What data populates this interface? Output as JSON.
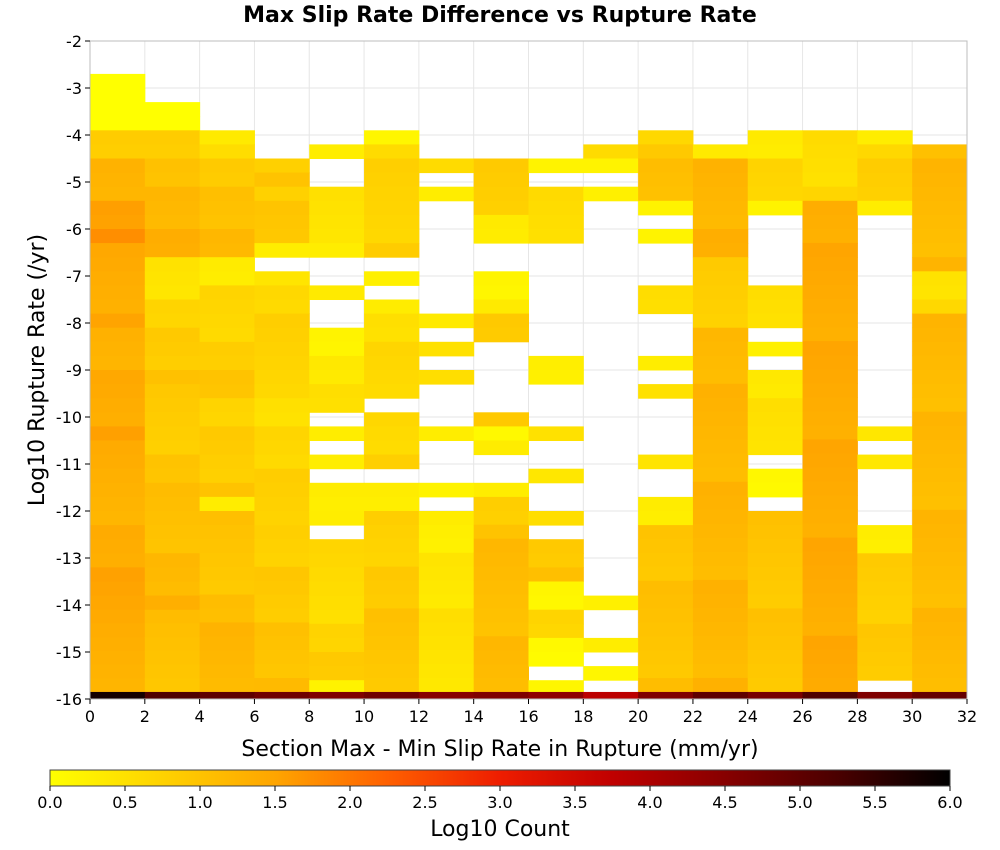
{
  "chart_data": {
    "type": "heatmap",
    "title": "Max Slip Rate Difference vs Rupture Rate",
    "xlabel": "Section Max - Min Slip Rate in Rupture (mm/yr)",
    "ylabel": "Log10 Rupture Rate (/yr)",
    "xlim": [
      0,
      32
    ],
    "ylim": [
      -16,
      -2
    ],
    "x_ticks": [
      "0",
      "2",
      "4",
      "6",
      "8",
      "10",
      "12",
      "14",
      "16",
      "18",
      "20",
      "22",
      "24",
      "26",
      "28",
      "30",
      "32"
    ],
    "y_ticks": [
      "-2",
      "-3",
      "-4",
      "-5",
      "-6",
      "-7",
      "-8",
      "-9",
      "-10",
      "-11",
      "-12",
      "-13",
      "-14",
      "-15",
      "-16"
    ],
    "x_bin_width": 2,
    "y_bin_height": 0.3,
    "grid": true,
    "colorbar": {
      "label": "Log10 Count",
      "min": 0.0,
      "max": 6.0,
      "ticks": [
        "0.0",
        "0.5",
        "1.0",
        "1.5",
        "2.0",
        "2.5",
        "3.0",
        "3.5",
        "4.0",
        "4.5",
        "5.0",
        "5.5",
        "6.0"
      ],
      "stops": [
        "#ffff00",
        "#ffd200",
        "#ffa500",
        "#ff6000",
        "#ee1d00",
        "#c00000",
        "#870000",
        "#4a0000",
        "#000000"
      ]
    },
    "columns": [
      {
        "x_start": 0,
        "bins": [
          {
            "y_top": -2.7,
            "y_bottom": -3.3,
            "value": 0.1
          },
          {
            "y_top": -3.3,
            "y_bottom": -3.9,
            "value": 0.15
          },
          {
            "y_top": -3.9,
            "y_bottom": -4.5,
            "value": 1.1
          },
          {
            "y_top": -4.5,
            "y_bottom": -5.4,
            "value": 1.5
          },
          {
            "y_top": -5.4,
            "y_bottom": -6.3,
            "value": 1.85
          },
          {
            "y_top": -6.3,
            "y_bottom": -8.1,
            "value": 1.55
          },
          {
            "y_top": -8.1,
            "y_bottom": -10.5,
            "value": 1.55
          },
          {
            "y_top": -10.5,
            "y_bottom": -12.3,
            "value": 1.5
          },
          {
            "y_top": -12.3,
            "y_bottom": -14.1,
            "value": 1.65
          },
          {
            "y_top": -14.1,
            "y_bottom": -15.85,
            "value": 1.55
          }
        ]
      },
      {
        "x_start": 2,
        "bins": [
          {
            "y_top": -3.3,
            "y_bottom": -3.9,
            "value": 0.2
          },
          {
            "y_top": -3.9,
            "y_bottom": -5.1,
            "value": 1.1
          },
          {
            "y_top": -5.1,
            "y_bottom": -6.6,
            "value": 1.4
          },
          {
            "y_top": -6.6,
            "y_bottom": -7.5,
            "value": 0.7
          },
          {
            "y_top": -7.5,
            "y_bottom": -9.3,
            "value": 1.0
          },
          {
            "y_top": -9.3,
            "y_bottom": -11.4,
            "value": 1.1
          },
          {
            "y_top": -11.4,
            "y_bottom": -14.1,
            "value": 1.3
          },
          {
            "y_top": -14.1,
            "y_bottom": -15.85,
            "value": 1.25
          }
        ]
      },
      {
        "x_start": 4,
        "bins": [
          {
            "y_top": -3.9,
            "y_bottom": -4.5,
            "value": 0.6
          },
          {
            "y_top": -4.5,
            "y_bottom": -6.6,
            "value": 1.1
          },
          {
            "y_top": -6.6,
            "y_bottom": -7.2,
            "value": 0.55
          },
          {
            "y_top": -7.2,
            "y_bottom": -9.6,
            "value": 0.9
          },
          {
            "y_top": -9.6,
            "y_bottom": -11.7,
            "value": 1.0
          },
          {
            "y_top": -11.7,
            "y_bottom": -12.0,
            "value": 0.3
          },
          {
            "y_top": -12.0,
            "y_bottom": -15.85,
            "value": 1.2
          }
        ]
      },
      {
        "x_start": 6,
        "bins": [
          {
            "y_top": -4.5,
            "y_bottom": -5.1,
            "value": 1.0
          },
          {
            "y_top": -5.1,
            "y_bottom": -6.3,
            "value": 0.95
          },
          {
            "y_top": -6.3,
            "y_bottom": -6.6,
            "value": 0.3
          },
          {
            "y_top": -6.9,
            "y_bottom": -9.6,
            "value": 0.75
          },
          {
            "y_top": -9.6,
            "y_bottom": -12.3,
            "value": 0.8
          },
          {
            "y_top": -12.3,
            "y_bottom": -15.85,
            "value": 1.05
          }
        ]
      },
      {
        "x_start": 8,
        "bins": [
          {
            "y_top": -4.2,
            "y_bottom": -4.5,
            "value": 0.3
          },
          {
            "y_top": -5.1,
            "y_bottom": -6.3,
            "value": 0.45
          },
          {
            "y_top": -6.3,
            "y_bottom": -6.6,
            "value": 0.3
          },
          {
            "y_top": -7.2,
            "y_bottom": -7.5,
            "value": 0.35
          },
          {
            "y_top": -8.1,
            "y_bottom": -9.9,
            "value": 0.45
          },
          {
            "y_top": -10.2,
            "y_bottom": -10.5,
            "value": 0.3
          },
          {
            "y_top": -10.8,
            "y_bottom": -11.1,
            "value": 0.3
          },
          {
            "y_top": -11.4,
            "y_bottom": -12.0,
            "value": 0.5
          },
          {
            "y_top": -12.0,
            "y_bottom": -12.3,
            "value": 0.3
          },
          {
            "y_top": -12.6,
            "y_bottom": -15.6,
            "value": 0.8
          },
          {
            "y_top": -15.6,
            "y_bottom": -15.85,
            "value": 0.2
          }
        ]
      },
      {
        "x_start": 10,
        "bins": [
          {
            "y_top": -3.9,
            "y_bottom": -4.2,
            "value": 0.15
          },
          {
            "y_top": -4.2,
            "y_bottom": -5.4,
            "value": 0.7
          },
          {
            "y_top": -5.4,
            "y_bottom": -6.6,
            "value": 0.75
          },
          {
            "y_top": -6.9,
            "y_bottom": -7.2,
            "value": 0.25
          },
          {
            "y_top": -7.5,
            "y_bottom": -9.6,
            "value": 0.6
          },
          {
            "y_top": -9.9,
            "y_bottom": -11.1,
            "value": 0.8
          },
          {
            "y_top": -11.4,
            "y_bottom": -12.0,
            "value": 0.5
          },
          {
            "y_top": -12.0,
            "y_bottom": -15.85,
            "value": 0.95
          }
        ]
      },
      {
        "x_start": 12,
        "bins": [
          {
            "y_top": -4.5,
            "y_bottom": -4.8,
            "value": 0.6
          },
          {
            "y_top": -5.1,
            "y_bottom": -5.4,
            "value": 0.3
          },
          {
            "y_top": -7.8,
            "y_bottom": -8.1,
            "value": 0.35
          },
          {
            "y_top": -8.4,
            "y_bottom": -8.7,
            "value": 0.5
          },
          {
            "y_top": -9.0,
            "y_bottom": -9.3,
            "value": 0.55
          },
          {
            "y_top": -10.2,
            "y_bottom": -10.5,
            "value": 0.3
          },
          {
            "y_top": -11.4,
            "y_bottom": -11.7,
            "value": 0.2
          },
          {
            "y_top": -12.0,
            "y_bottom": -15.85,
            "value": 0.45
          }
        ]
      },
      {
        "x_start": 14,
        "bins": [
          {
            "y_top": -4.5,
            "y_bottom": -5.7,
            "value": 0.85
          },
          {
            "y_top": -5.7,
            "y_bottom": -6.3,
            "value": 0.25
          },
          {
            "y_top": -6.9,
            "y_bottom": -7.8,
            "value": 0.25
          },
          {
            "y_top": -7.8,
            "y_bottom": -8.4,
            "value": 0.8
          },
          {
            "y_top": -9.9,
            "y_bottom": -10.2,
            "value": 0.9
          },
          {
            "y_top": -10.2,
            "y_bottom": -10.8,
            "value": 0.35
          },
          {
            "y_top": -11.4,
            "y_bottom": -11.7,
            "value": 0.3
          },
          {
            "y_top": -11.7,
            "y_bottom": -15.85,
            "value": 1.1
          }
        ]
      },
      {
        "x_start": 16,
        "bins": [
          {
            "y_top": -4.5,
            "y_bottom": -4.8,
            "value": 0.2
          },
          {
            "y_top": -5.1,
            "y_bottom": -6.3,
            "value": 0.55
          },
          {
            "y_top": -8.7,
            "y_bottom": -9.3,
            "value": 0.25
          },
          {
            "y_top": -10.2,
            "y_bottom": -10.5,
            "value": 0.5
          },
          {
            "y_top": -11.1,
            "y_bottom": -11.4,
            "value": 0.4
          },
          {
            "y_top": -12.0,
            "y_bottom": -12.3,
            "value": 0.55
          },
          {
            "y_top": -12.6,
            "y_bottom": -13.5,
            "value": 1.0
          },
          {
            "y_top": -13.5,
            "y_bottom": -14.1,
            "value": 0.35
          },
          {
            "y_top": -14.1,
            "y_bottom": -14.7,
            "value": 0.85
          },
          {
            "y_top": -14.7,
            "y_bottom": -15.3,
            "value": 0.2
          },
          {
            "y_top": -15.6,
            "y_bottom": -15.85,
            "value": 0.15
          }
        ]
      },
      {
        "x_start": 18,
        "bins": [
          {
            "y_top": -4.2,
            "y_bottom": -4.5,
            "value": 0.6
          },
          {
            "y_top": -4.5,
            "y_bottom": -4.8,
            "value": 0.2
          },
          {
            "y_top": -5.1,
            "y_bottom": -5.4,
            "value": 0.25
          },
          {
            "y_top": -13.8,
            "y_bottom": -14.1,
            "value": 0.25
          },
          {
            "y_top": -14.7,
            "y_bottom": -15.0,
            "value": 0.3
          },
          {
            "y_top": -15.3,
            "y_bottom": -15.6,
            "value": 0.15
          }
        ]
      },
      {
        "x_start": 20,
        "bins": [
          {
            "y_top": -3.9,
            "y_bottom": -4.2,
            "value": 0.65
          },
          {
            "y_top": -4.2,
            "y_bottom": -5.4,
            "value": 1.0
          },
          {
            "y_top": -5.4,
            "y_bottom": -5.7,
            "value": 0.2
          },
          {
            "y_top": -6.0,
            "y_bottom": -6.3,
            "value": 0.2
          },
          {
            "y_top": -7.2,
            "y_bottom": -7.8,
            "value": 0.5
          },
          {
            "y_top": -8.7,
            "y_bottom": -9.0,
            "value": 0.3
          },
          {
            "y_top": -9.3,
            "y_bottom": -9.6,
            "value": 0.5
          },
          {
            "y_top": -10.8,
            "y_bottom": -11.1,
            "value": 0.45
          },
          {
            "y_top": -11.7,
            "y_bottom": -12.3,
            "value": 0.35
          },
          {
            "y_top": -12.3,
            "y_bottom": -15.85,
            "value": 1.0
          }
        ]
      },
      {
        "x_start": 22,
        "bins": [
          {
            "y_top": -4.2,
            "y_bottom": -4.5,
            "value": 0.35
          },
          {
            "y_top": -4.5,
            "y_bottom": -6.6,
            "value": 1.25
          },
          {
            "y_top": -6.6,
            "y_bottom": -8.1,
            "value": 0.85
          },
          {
            "y_top": -8.1,
            "y_bottom": -15.85,
            "value": 1.2
          }
        ]
      },
      {
        "x_start": 24,
        "bins": [
          {
            "y_top": -3.9,
            "y_bottom": -4.5,
            "value": 0.35
          },
          {
            "y_top": -4.5,
            "y_bottom": -5.4,
            "value": 0.7
          },
          {
            "y_top": -5.4,
            "y_bottom": -5.7,
            "value": 0.2
          },
          {
            "y_top": -7.2,
            "y_bottom": -8.1,
            "value": 0.5
          },
          {
            "y_top": -8.4,
            "y_bottom": -8.7,
            "value": 0.25
          },
          {
            "y_top": -9.0,
            "y_bottom": -10.8,
            "value": 0.45
          },
          {
            "y_top": -11.1,
            "y_bottom": -11.7,
            "value": 0.2
          },
          {
            "y_top": -12.0,
            "y_bottom": -15.85,
            "value": 0.95
          }
        ]
      },
      {
        "x_start": 26,
        "bins": [
          {
            "y_top": -3.9,
            "y_bottom": -5.4,
            "value": 0.6
          },
          {
            "y_top": -5.4,
            "y_bottom": -15.85,
            "value": 1.4
          }
        ]
      },
      {
        "x_start": 28,
        "bins": [
          {
            "y_top": -3.9,
            "y_bottom": -4.2,
            "value": 0.3
          },
          {
            "y_top": -4.2,
            "y_bottom": -5.4,
            "value": 0.75
          },
          {
            "y_top": -5.4,
            "y_bottom": -5.7,
            "value": 0.3
          },
          {
            "y_top": -10.2,
            "y_bottom": -10.5,
            "value": 0.4
          },
          {
            "y_top": -10.8,
            "y_bottom": -11.1,
            "value": 0.4
          },
          {
            "y_top": -12.3,
            "y_bottom": -12.9,
            "value": 0.3
          },
          {
            "y_top": -12.9,
            "y_bottom": -15.6,
            "value": 0.85
          }
        ]
      },
      {
        "x_start": 30,
        "bins": [
          {
            "y_top": -4.2,
            "y_bottom": -6.9,
            "value": 1.15
          },
          {
            "y_top": -6.9,
            "y_bottom": -7.8,
            "value": 0.55
          },
          {
            "y_top": -7.8,
            "y_bottom": -15.85,
            "value": 1.15
          }
        ]
      }
    ],
    "bottom_row": {
      "y_top": -15.85,
      "y_bottom": -16.0,
      "values": [
        5.8,
        5.2,
        5.0,
        4.8,
        4.6,
        4.8,
        4.5,
        4.6,
        4.4,
        3.8,
        4.6,
        5.0,
        4.7,
        5.2,
        4.6,
        4.9
      ]
    }
  }
}
